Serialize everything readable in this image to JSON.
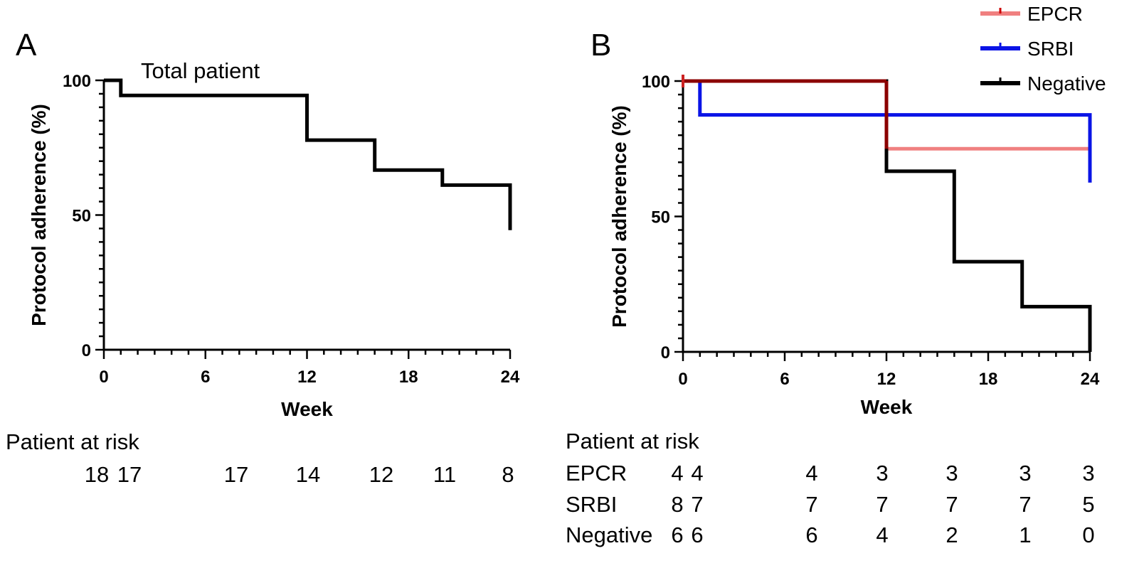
{
  "chart_data": [
    {
      "panel": "A",
      "type": "line",
      "step": true,
      "title": "Total patient",
      "xlabel": "Week",
      "ylabel": "Protocol adherence (%)",
      "xlim": [
        0,
        24
      ],
      "ylim": [
        0,
        100
      ],
      "xticks": [
        0,
        6,
        12,
        18,
        24
      ],
      "yticks": [
        0,
        50,
        100
      ],
      "series": [
        {
          "name": "Total patient",
          "color": "#000000",
          "points": [
            [
              0,
              100
            ],
            [
              1,
              100
            ],
            [
              1,
              94.4
            ],
            [
              12,
              94.4
            ],
            [
              12,
              77.8
            ],
            [
              16,
              77.8
            ],
            [
              16,
              66.7
            ],
            [
              20,
              66.7
            ],
            [
              20,
              61.1
            ],
            [
              24,
              61.1
            ],
            [
              24,
              44.4
            ]
          ]
        }
      ],
      "risk_table": {
        "heading": "Patient at risk",
        "rows": [
          {
            "label": "",
            "values": [
              {
                "week": 0,
                "text": "18"
              },
              {
                "week": 1,
                "text": "17"
              },
              {
                "week": 8,
                "text": "17"
              },
              {
                "week": 12,
                "text": "14"
              },
              {
                "week": 16,
                "text": "12"
              },
              {
                "week": 20,
                "text": "11"
              },
              {
                "week": 24,
                "text": "8"
              }
            ]
          }
        ]
      }
    },
    {
      "panel": "B",
      "type": "line",
      "step": true,
      "title": "",
      "xlabel": "Week",
      "ylabel": "Protocol adherence (%)",
      "xlim": [
        0,
        24
      ],
      "ylim": [
        0,
        100
      ],
      "xticks": [
        0,
        6,
        12,
        18,
        24
      ],
      "yticks": [
        0,
        50,
        100
      ],
      "legend_position": "top-right",
      "series": [
        {
          "name": "EPCR",
          "color": "#f08080",
          "points": [
            [
              0,
              100
            ],
            [
              12,
              100
            ],
            [
              12,
              75
            ],
            [
              24,
              75
            ]
          ]
        },
        {
          "name": "SRBI",
          "color": "#0a14e6",
          "points": [
            [
              0,
              100
            ],
            [
              1,
              100
            ],
            [
              1,
              87.5
            ],
            [
              24,
              87.5
            ],
            [
              24,
              62.5
            ]
          ]
        },
        {
          "name": "Negative",
          "color": "#000000",
          "points": [
            [
              0,
              100
            ],
            [
              12,
              100
            ],
            [
              12,
              66.7
            ],
            [
              16,
              66.7
            ],
            [
              16,
              33.3
            ],
            [
              20,
              33.3
            ],
            [
              20,
              16.7
            ],
            [
              24,
              16.7
            ],
            [
              24,
              0
            ]
          ]
        }
      ],
      "risk_table": {
        "heading": "Patient at risk",
        "rows": [
          {
            "label": "EPCR",
            "values": [
              {
                "week": 0,
                "text": "4"
              },
              {
                "week": 1,
                "text": "4"
              },
              {
                "week": 8,
                "text": "4"
              },
              {
                "week": 12,
                "text": "3"
              },
              {
                "week": 16,
                "text": "3"
              },
              {
                "week": 20,
                "text": "3"
              },
              {
                "week": 24,
                "text": "3"
              }
            ]
          },
          {
            "label": "SRBI",
            "values": [
              {
                "week": 0,
                "text": "8"
              },
              {
                "week": 1,
                "text": "7"
              },
              {
                "week": 8,
                "text": "7"
              },
              {
                "week": 12,
                "text": "7"
              },
              {
                "week": 16,
                "text": "7"
              },
              {
                "week": 20,
                "text": "7"
              },
              {
                "week": 24,
                "text": "5"
              }
            ]
          },
          {
            "label": "Negative",
            "values": [
              {
                "week": 0,
                "text": "6"
              },
              {
                "week": 1,
                "text": "6"
              },
              {
                "week": 8,
                "text": "6"
              },
              {
                "week": 12,
                "text": "4"
              },
              {
                "week": 16,
                "text": "2"
              },
              {
                "week": 20,
                "text": "1"
              },
              {
                "week": 24,
                "text": "0"
              }
            ]
          }
        ]
      }
    }
  ]
}
